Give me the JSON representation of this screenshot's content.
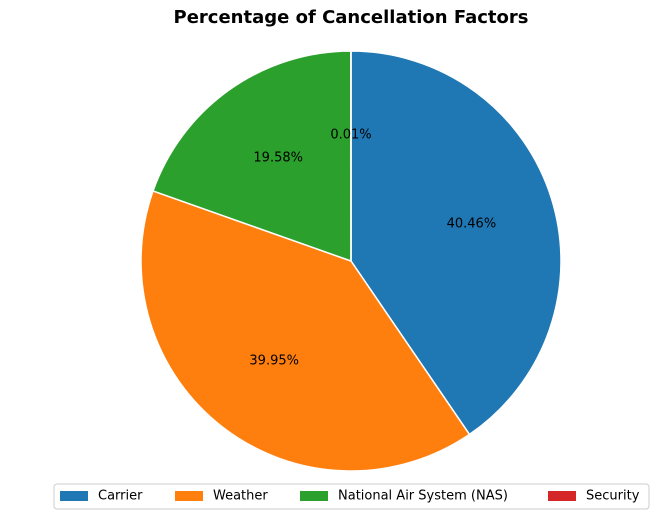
{
  "chart_data": {
    "type": "pie",
    "title": "Percentage of Cancellation Factors",
    "categories": [
      "Carrier",
      "Weather",
      "National Air System (NAS)",
      "Security"
    ],
    "values": [
      40.46,
      39.95,
      19.58,
      0.01
    ],
    "labels": [
      "40.46%",
      "39.95%",
      "19.58%",
      "0.01%"
    ],
    "colors": [
      "#1f77b4",
      "#ff7f0e",
      "#2ca02c",
      "#d62728"
    ],
    "start_angle": "90° (top)",
    "direction": "clockwise",
    "legend": {
      "placement": "bottom-center",
      "columns": 4,
      "entries": [
        "Carrier",
        "Weather",
        "National Air System (NAS)",
        "Security"
      ]
    }
  }
}
